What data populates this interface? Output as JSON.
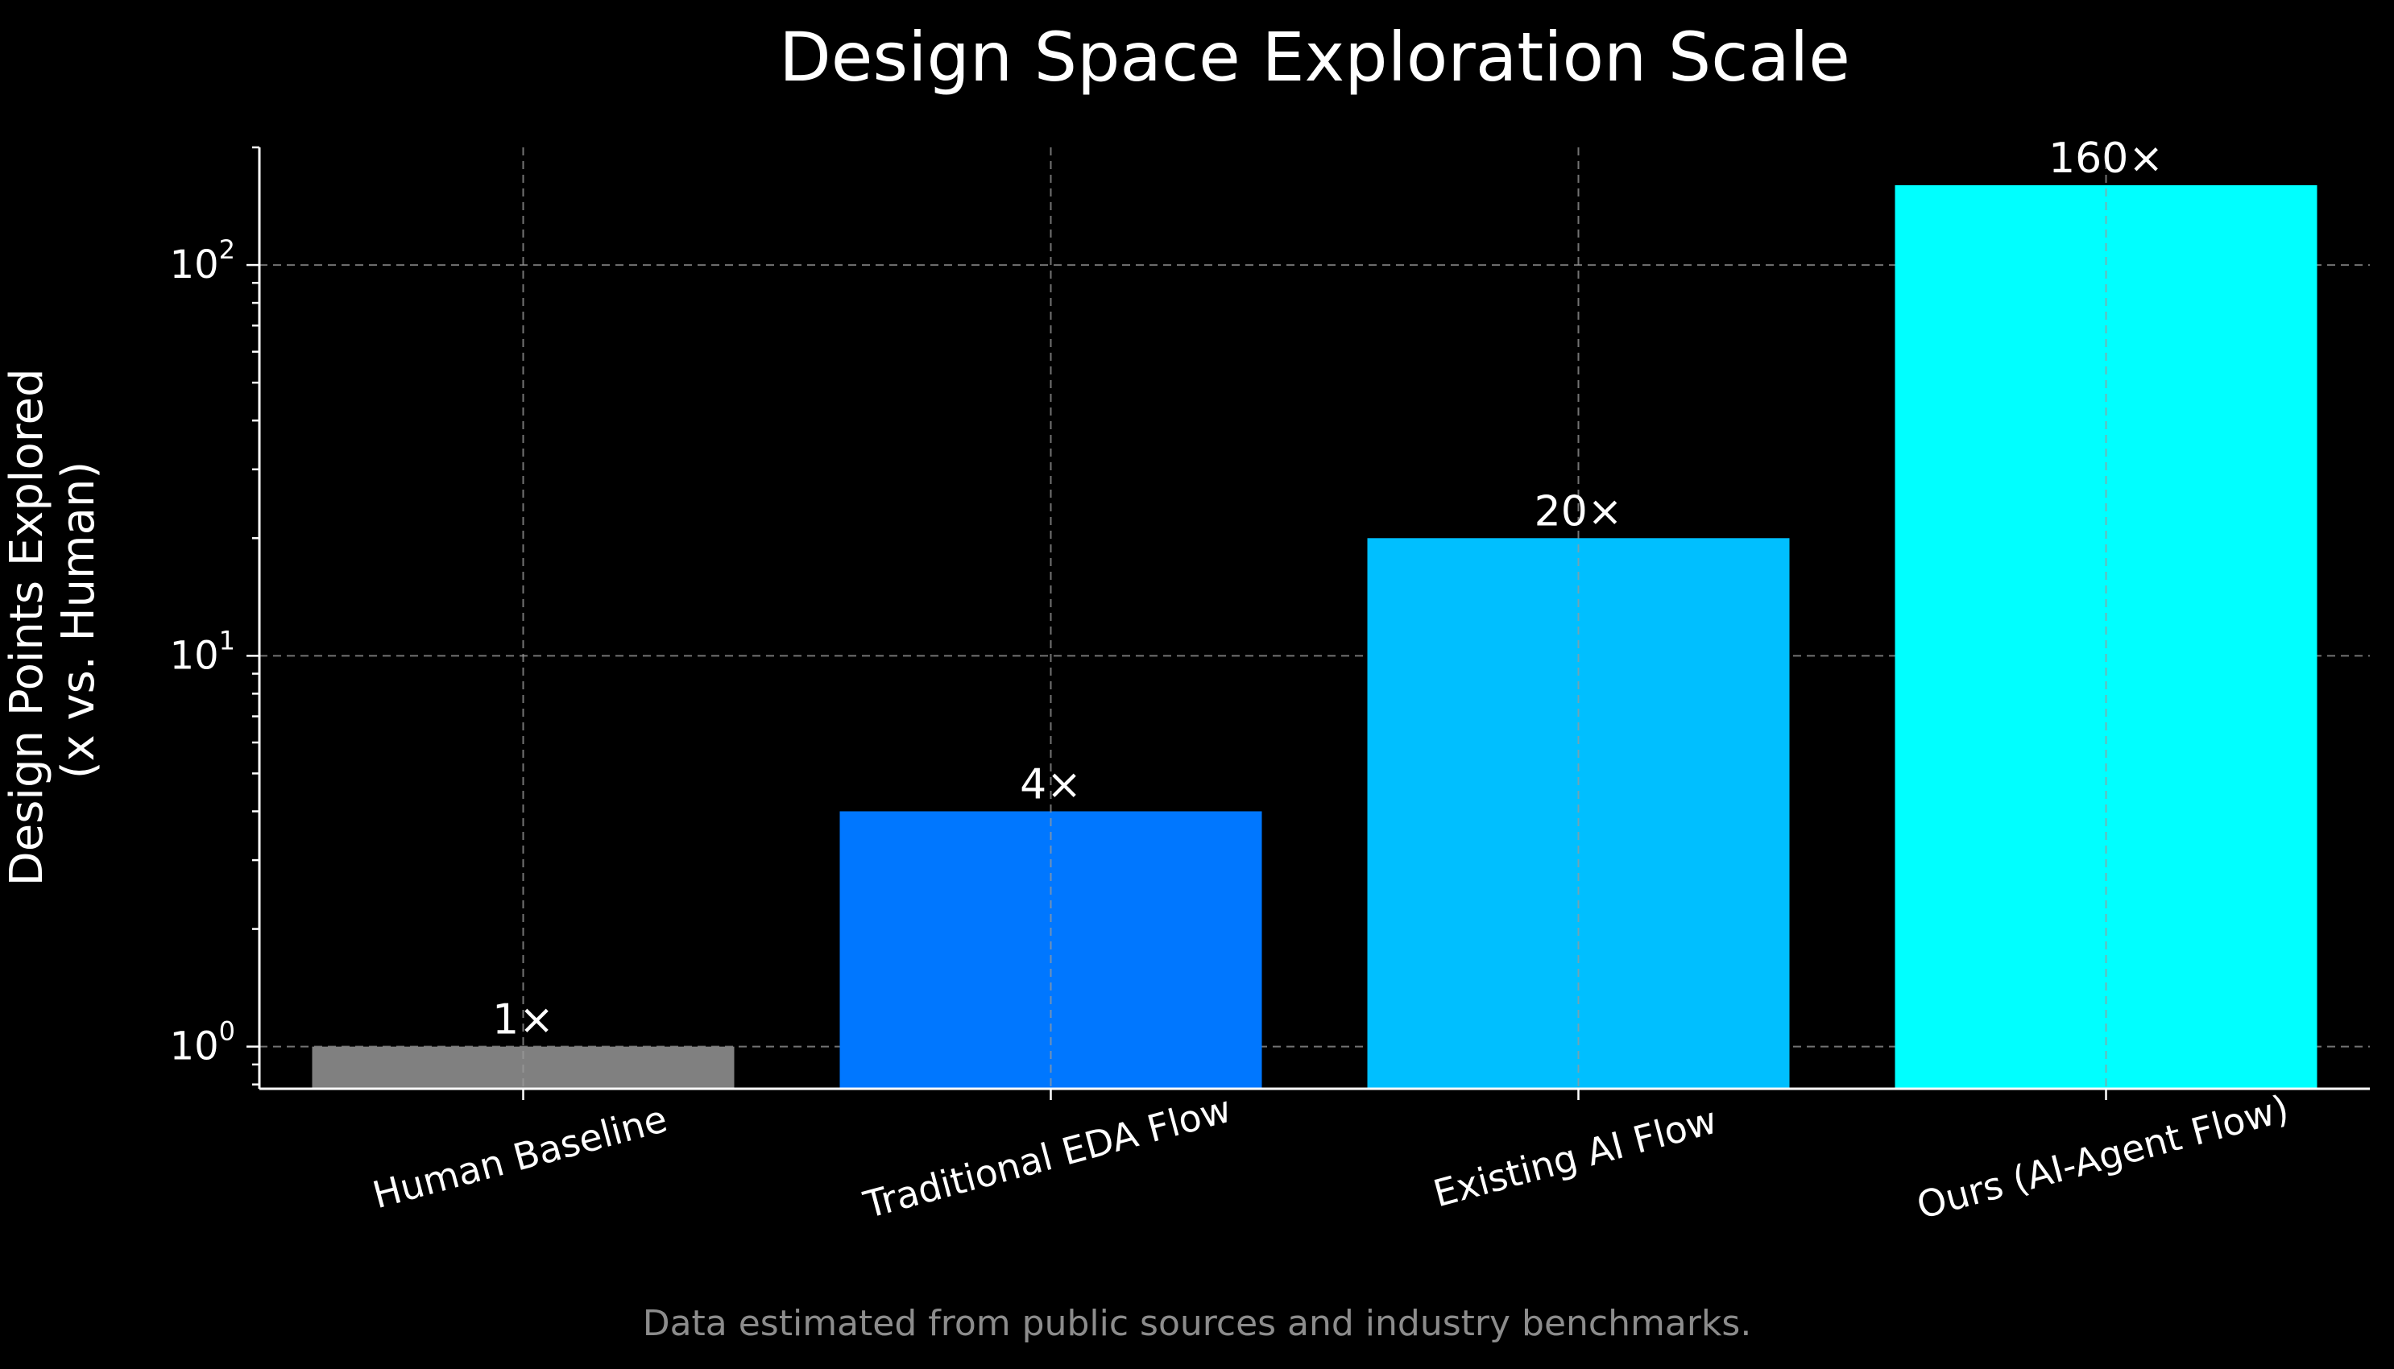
{
  "chart_data": {
    "type": "bar",
    "title": "Design Space Exploration Scale",
    "ylabel_lines": [
      "Design Points Explored",
      "(x vs. Human)"
    ],
    "xlabel": "",
    "yscale": "log",
    "ylim": [
      0.78,
      200
    ],
    "grid": true,
    "categories": [
      "Human Baseline",
      "Traditional EDA Flow",
      "Existing AI Flow",
      "Ours (AI-Agent Flow)"
    ],
    "values": [
      1,
      4,
      20,
      160
    ],
    "bar_labels": [
      "1×",
      "4×",
      "20×",
      "160×"
    ],
    "colors": [
      "#808080",
      "#0077ff",
      "#00bfff",
      "#00ffff"
    ],
    "y_ticks": [
      {
        "value": 1,
        "base": "10",
        "exp": "0"
      },
      {
        "value": 10,
        "base": "10",
        "exp": "1"
      },
      {
        "value": 100,
        "base": "10",
        "exp": "2"
      }
    ],
    "footnote": "Data estimated from public sources and industry benchmarks."
  }
}
